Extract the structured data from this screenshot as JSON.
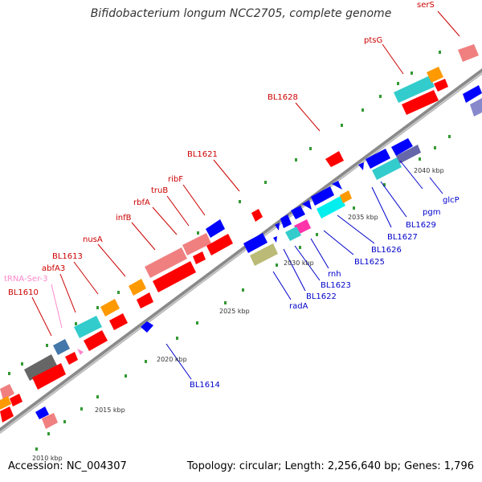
{
  "title": "Bifidobacterium longum NCC2705, complete genome",
  "footer": {
    "accession": "Accession: NC_004307",
    "summary": "Topology: circular; Length: 2,256,640 bp; Genes: 1,796"
  },
  "scale_labels": [
    "2010 kbp",
    "2015 kbp",
    "2020 kbp",
    "2025 kbp",
    "2030 kbp",
    "2035 kbp",
    "2040 kbp"
  ],
  "gene_labels_forward": [
    "serS",
    "ptsG",
    "BL1628",
    "BL1621",
    "ribF",
    "truB",
    "rbfA",
    "infB",
    "nusA",
    "BL1613",
    "abfA3",
    "tRNA-Ser-3",
    "BL1610"
  ],
  "gene_labels_reverse": [
    "glcP",
    "pgm",
    "BL1629",
    "BL1627",
    "BL1626",
    "BL1625",
    "rnh",
    "BL1623",
    "BL1622",
    "radA",
    "BL1614"
  ],
  "colors": {
    "forward_label": "#cc0000",
    "reverse_label": "#0000cc",
    "trna_label": "#ff88cc",
    "backbone": "#999999",
    "tick": "#339933",
    "cds_red": "#ff0000",
    "cds_blue": "#0000ff",
    "pink": "#f08080",
    "cyan": "#33cccc",
    "orange": "#ff9900"
  }
}
